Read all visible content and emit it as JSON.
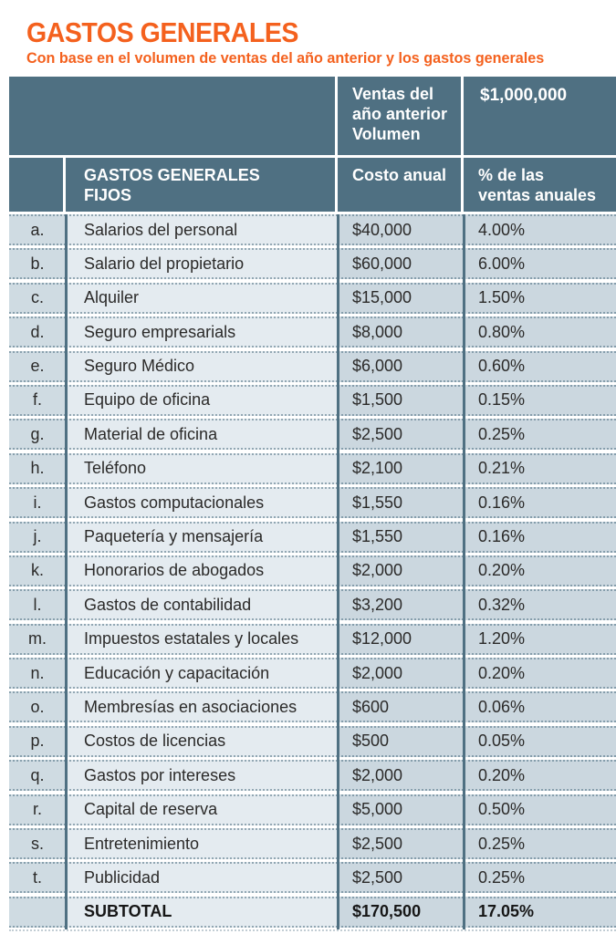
{
  "page": {
    "title": "GASTOS GENERALES",
    "subtitle": "Con base en el volumen de ventas del año anterior y los gastos generales"
  },
  "colors": {
    "accent_orange": "#F4611E",
    "header_teal": "#4F7082",
    "letter_column_bg": "#CFDBE2",
    "description_column_bg": "#E4EBF0",
    "value_columns_bg": "#CBD7DF",
    "body_text": "#2B2A29",
    "header_text": "#FFFFFF"
  },
  "table": {
    "header_row1": {
      "volume_label": "Ventas del\naño anterior\nVolumen",
      "volume_value": "$1,000,000"
    },
    "header_row2": {
      "section_label": "GASTOS GENERALES\nFIJOS",
      "cost_label": "Costo anual",
      "percent_label": "% de las\nventas anuales"
    },
    "rows": [
      {
        "letter": "a.",
        "label": "Salarios del personal",
        "cost": "$40,000",
        "percent": "4.00%"
      },
      {
        "letter": "b.",
        "label": "Salario del propietario",
        "cost": "$60,000",
        "percent": "6.00%"
      },
      {
        "letter": "c.",
        "label": "Alquiler",
        "cost": "$15,000",
        "percent": "1.50%"
      },
      {
        "letter": "d.",
        "label": "Seguro empresarials",
        "cost": "$8,000",
        "percent": "0.80%"
      },
      {
        "letter": "e.",
        "label": "Seguro Médico",
        "cost": "$6,000",
        "percent": "0.60%"
      },
      {
        "letter": "f.",
        "label": "Equipo de oficina",
        "cost": "$1,500",
        "percent": "0.15%"
      },
      {
        "letter": "g.",
        "label": "Material de oficina",
        "cost": "$2,500",
        "percent": "0.25%"
      },
      {
        "letter": "h.",
        "label": "Teléfono",
        "cost": "$2,100",
        "percent": "0.21%"
      },
      {
        "letter": "i.",
        "label": "Gastos computacionales",
        "cost": "$1,550",
        "percent": "0.16%"
      },
      {
        "letter": "j.",
        "label": "Paquetería y mensajería",
        "cost": "$1,550",
        "percent": "0.16%"
      },
      {
        "letter": "k.",
        "label": "Honorarios de abogados",
        "cost": "$2,000",
        "percent": "0.20%"
      },
      {
        "letter": "l.",
        "label": "Gastos de contabilidad",
        "cost": "$3,200",
        "percent": "0.32%"
      },
      {
        "letter": "m.",
        "label": "Impuestos estatales y locales",
        "cost": "$12,000",
        "percent": "1.20%"
      },
      {
        "letter": "n.",
        "label": "Educación y capacitación",
        "cost": "$2,000",
        "percent": "0.20%"
      },
      {
        "letter": "o.",
        "label": "Membresías en asociaciones",
        "cost": "$600",
        "percent": "0.06%"
      },
      {
        "letter": "p.",
        "label": "Costos de licencias",
        "cost": "$500",
        "percent": "0.05%"
      },
      {
        "letter": "q.",
        "label": "Gastos por intereses",
        "cost": "$2,000",
        "percent": "0.20%"
      },
      {
        "letter": "r.",
        "label": "Capital de reserva",
        "cost": "$5,000",
        "percent": "0.50%"
      },
      {
        "letter": "s.",
        "label": "Entretenimiento",
        "cost": "$2,500",
        "percent": "0.25%"
      },
      {
        "letter": "t.",
        "label": "Publicidad",
        "cost": "$2,500",
        "percent": "0.25%"
      }
    ],
    "subtotal": {
      "letter": "",
      "label": "SUBTOTAL",
      "cost": "$170,500",
      "percent": "17.05%"
    }
  }
}
